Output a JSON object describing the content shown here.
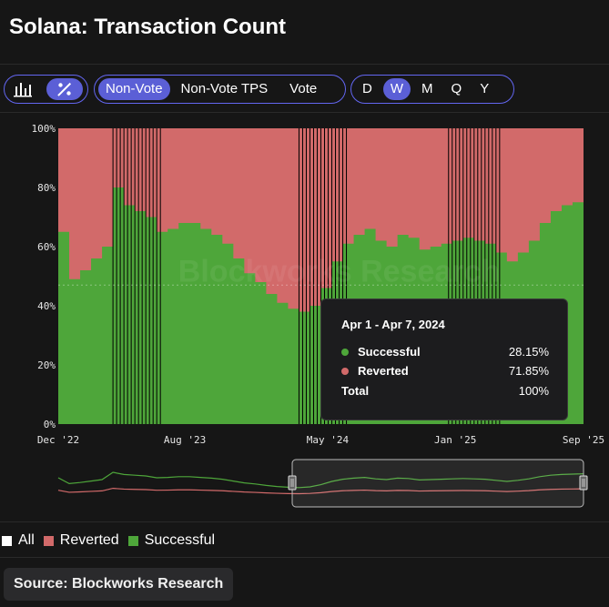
{
  "title": "Solana: Transaction Count",
  "toolbar": {
    "chart_toggle": [
      "bar-chart-icon",
      "percent-icon"
    ],
    "metrics": [
      "Non-Vote",
      "Non-Vote TPS",
      "Vote"
    ],
    "active_metric": "Non-Vote",
    "periods": [
      "D",
      "W",
      "M",
      "Q",
      "Y"
    ],
    "active_period": "W"
  },
  "colors": {
    "successful": "#4ea63a",
    "reverted": "#d26a6a",
    "accent": "#5b5fd6"
  },
  "chart_data": {
    "type": "area",
    "stacked_percent": true,
    "x_tick_labels": [
      "Dec '22",
      "Aug '23",
      "May '24",
      "Jan '25",
      "Sep '25"
    ],
    "y_tick_labels": [
      "0%",
      "20%",
      "40%",
      "60%",
      "80%",
      "100%"
    ],
    "ylim": [
      0,
      100
    ],
    "x": [
      "2022-12-01",
      "2022-12-22",
      "2023-01-12",
      "2023-02-02",
      "2023-02-23",
      "2023-03-16",
      "2023-04-06",
      "2023-04-27",
      "2023-05-18",
      "2023-06-08",
      "2023-06-29",
      "2023-07-20",
      "2023-08-10",
      "2023-08-31",
      "2023-09-21",
      "2023-10-12",
      "2023-11-02",
      "2023-11-23",
      "2023-12-14",
      "2024-01-04",
      "2024-01-25",
      "2024-02-15",
      "2024-03-07",
      "2024-03-28",
      "2024-04-18",
      "2024-05-09",
      "2024-05-30",
      "2024-06-20",
      "2024-07-11",
      "2024-08-01",
      "2024-08-22",
      "2024-09-12",
      "2024-10-03",
      "2024-10-24",
      "2024-11-14",
      "2024-12-05",
      "2024-12-26",
      "2025-01-16",
      "2025-02-06",
      "2025-02-27",
      "2025-03-20",
      "2025-04-10",
      "2025-05-01",
      "2025-05-22",
      "2025-06-12",
      "2025-07-03",
      "2025-07-24",
      "2025-08-14",
      "2025-09-04"
    ],
    "series": [
      {
        "name": "Successful",
        "values": [
          65,
          49,
          52,
          56,
          60,
          80,
          74,
          72,
          70,
          65,
          66,
          68,
          68,
          66,
          64,
          61,
          56,
          51,
          48,
          44,
          41,
          39,
          38,
          40,
          46,
          55,
          61,
          64,
          66,
          62,
          60,
          64,
          63,
          59,
          60,
          61,
          62,
          63,
          62,
          61,
          58,
          55,
          58,
          62,
          68,
          72,
          74,
          75,
          76
        ]
      },
      {
        "name": "Reverted",
        "values": [
          35,
          51,
          48,
          44,
          40,
          20,
          26,
          28,
          30,
          35,
          34,
          32,
          32,
          34,
          36,
          39,
          44,
          49,
          52,
          56,
          59,
          61,
          62,
          60,
          54,
          45,
          39,
          36,
          34,
          38,
          40,
          36,
          37,
          41,
          40,
          39,
          38,
          37,
          38,
          39,
          42,
          45,
          42,
          38,
          32,
          28,
          26,
          25,
          24
        ]
      }
    ],
    "highlighted_weeks": [
      {
        "from": "2023-03-16",
        "to": "2023-06-15"
      },
      {
        "from": "2024-03-07",
        "to": "2024-06-06"
      },
      {
        "from": "2024-12-19",
        "to": "2025-03-27"
      }
    ],
    "legend": [
      "All",
      "Reverted",
      "Successful"
    ],
    "watermark": "Blockworks Research"
  },
  "tooltip": {
    "title": "Apr 1 - Apr 7, 2024",
    "rows": [
      {
        "label": "Successful",
        "value": "28.15%",
        "color": "#4ea63a"
      },
      {
        "label": "Reverted",
        "value": "71.85%",
        "color": "#d26a6a"
      }
    ],
    "total_label": "Total",
    "total_value": "100%"
  },
  "source": "Source: Blockworks Research"
}
